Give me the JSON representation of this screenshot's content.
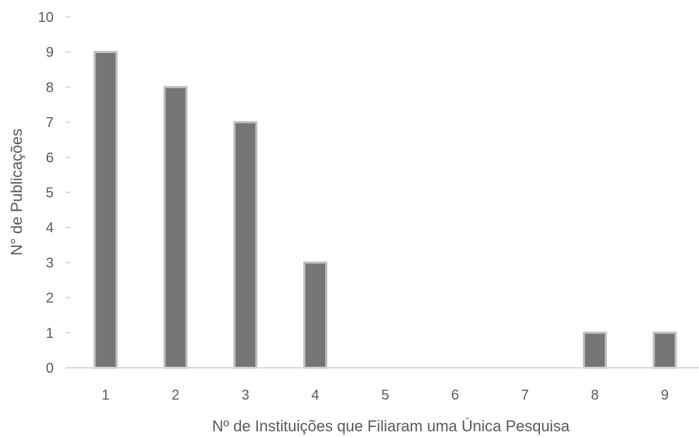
{
  "chart_data": {
    "type": "bar",
    "categories": [
      "1",
      "2",
      "3",
      "4",
      "5",
      "6",
      "7",
      "8",
      "9"
    ],
    "values": [
      9,
      8,
      7,
      3,
      0,
      0,
      0,
      1,
      1
    ],
    "title": "",
    "xlabel": "Nº de Instituições que Filiaram uma Única Pesquisa",
    "ylabel": "N° de Publicações",
    "ylim": [
      0,
      10
    ],
    "yticks": [
      0,
      1,
      2,
      3,
      4,
      5,
      6,
      7,
      8,
      9,
      10
    ],
    "grid": false,
    "legend": "none",
    "colors": {
      "bar_fill": "#757575",
      "bar_stroke": "#bfbfbf",
      "axis": "#d9d9d9",
      "text": "#595959"
    }
  }
}
